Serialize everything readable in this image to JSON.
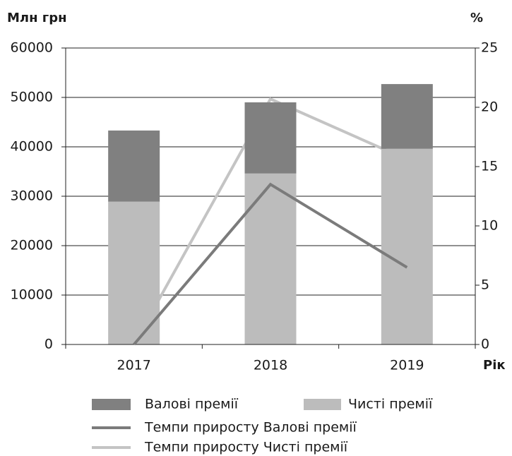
{
  "chart_data": {
    "type": "bar",
    "stacked": true,
    "y_label": "Млн грн",
    "y2_label": "%",
    "x_label": "Рік",
    "categories": [
      "2017",
      "2018",
      "2019"
    ],
    "series": [
      {
        "name": "Валові премії",
        "type": "bar",
        "color": "#808080",
        "values": [
          14400,
          14400,
          13100
        ]
      },
      {
        "name": "Чисті премії",
        "type": "bar",
        "color": "#bcbcbc",
        "values": [
          28900,
          34600,
          39600
        ]
      },
      {
        "name": "Темпи приросту Валові премії",
        "type": "line",
        "axis": "y2",
        "color": "#7b7b7b",
        "values": [
          0,
          13.5,
          6.5
        ]
      },
      {
        "name": "Темпи приросту Чисті премії",
        "type": "line",
        "axis": "y2",
        "color": "#c4c4c4",
        "values": [
          0,
          20.7,
          15.6
        ]
      }
    ],
    "ylim": [
      0,
      60000
    ],
    "yticks": [
      0,
      10000,
      20000,
      30000,
      40000,
      50000,
      60000
    ],
    "y2lim": [
      0,
      25
    ],
    "y2ticks": [
      0,
      5,
      10,
      15,
      20,
      25
    ],
    "grid": true
  }
}
